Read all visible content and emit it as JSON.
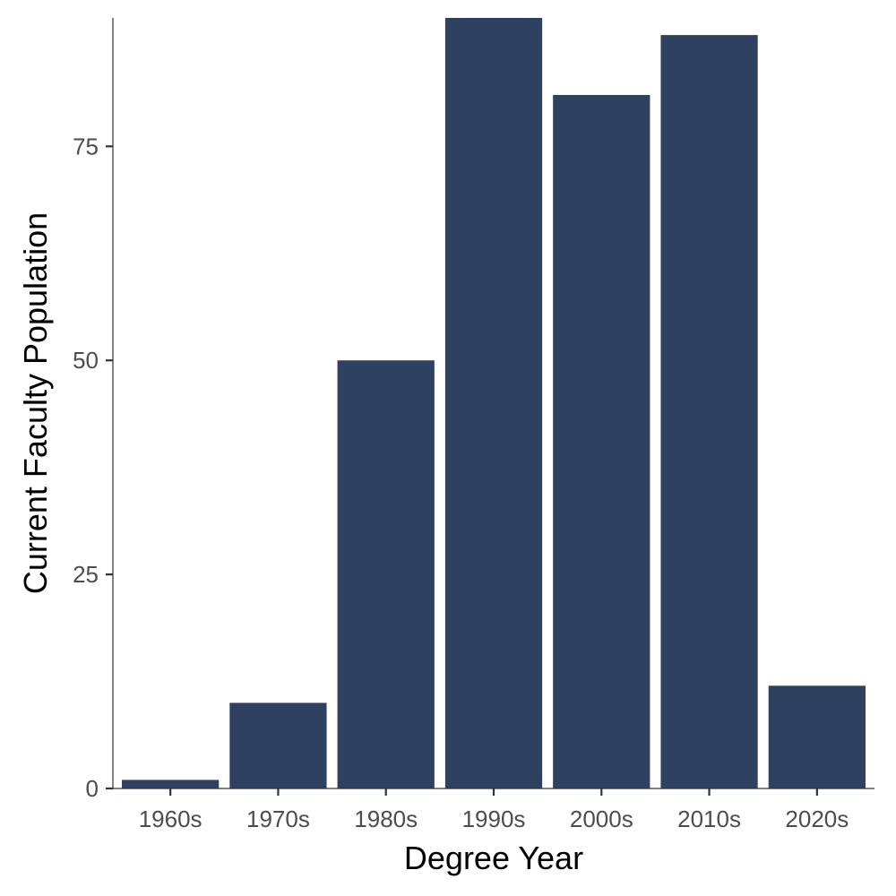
{
  "chart_data": {
    "type": "bar",
    "xlabel": "Degree Year",
    "ylabel": "Current Faculty Population",
    "categories": [
      "1960s",
      "1970s",
      "1980s",
      "1990s",
      "2000s",
      "2010s",
      "2020s"
    ],
    "values": [
      1,
      10,
      50,
      90,
      81,
      88,
      12
    ],
    "ylim": [
      0,
      90
    ],
    "yticks": [
      0,
      25,
      50,
      75
    ],
    "ytick_labels": [
      "0",
      "25",
      "50",
      "75"
    ],
    "bar_color": "#2e4161",
    "grid": false,
    "legend": "none"
  }
}
